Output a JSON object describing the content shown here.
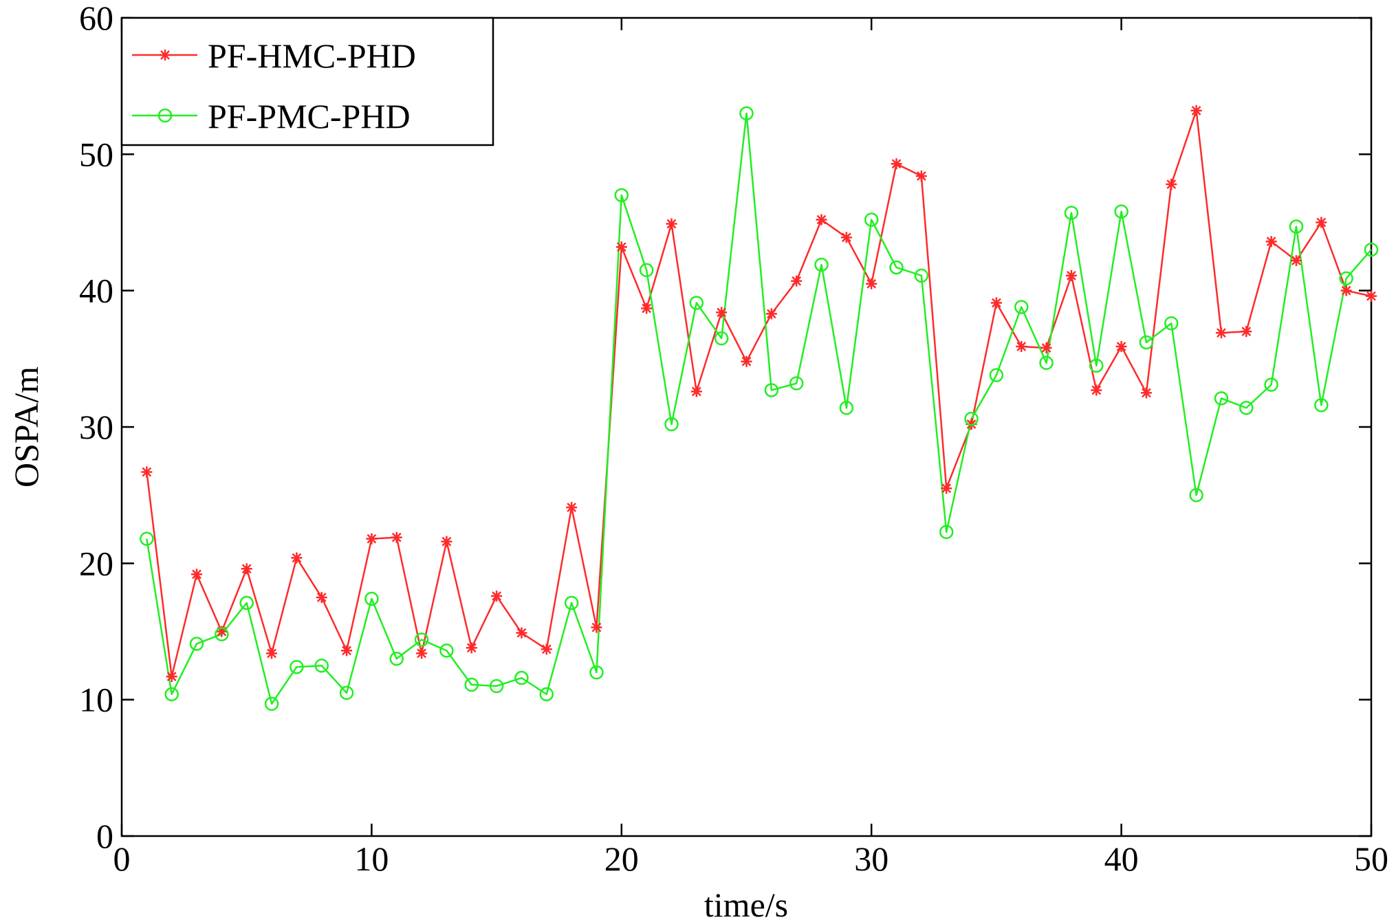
{
  "chart_data": {
    "type": "line",
    "title": "",
    "xlabel": "time/s",
    "ylabel": "OSPA/m",
    "xlim": [
      0,
      50
    ],
    "ylim": [
      0,
      60
    ],
    "xticks": [
      0,
      10,
      20,
      30,
      40,
      50
    ],
    "yticks": [
      0,
      10,
      20,
      30,
      40,
      50,
      60
    ],
    "grid": false,
    "legend_position": "top-left",
    "x": [
      1,
      2,
      3,
      4,
      5,
      6,
      7,
      8,
      9,
      10,
      11,
      12,
      13,
      14,
      15,
      16,
      17,
      18,
      19,
      20,
      21,
      22,
      23,
      24,
      25,
      26,
      27,
      28,
      29,
      30,
      31,
      32,
      33,
      34,
      35,
      36,
      37,
      38,
      39,
      40,
      41,
      42,
      43,
      44,
      45,
      46,
      47,
      48,
      49,
      50
    ],
    "series": [
      {
        "name": "PF-HMC-PHD",
        "color": "#ff2a2a",
        "marker": "star",
        "values": [
          26.7,
          11.7,
          19.2,
          15.0,
          19.6,
          13.4,
          20.4,
          17.5,
          13.6,
          21.8,
          21.9,
          13.4,
          21.6,
          13.8,
          17.6,
          14.9,
          13.7,
          24.1,
          15.3,
          43.2,
          38.7,
          44.9,
          32.6,
          38.4,
          34.8,
          38.3,
          40.7,
          45.2,
          43.9,
          40.5,
          49.3,
          48.4,
          25.5,
          30.2,
          39.1,
          35.9,
          35.8,
          41.1,
          32.7,
          35.9,
          32.5,
          47.8,
          53.2,
          36.9,
          37.0,
          43.6,
          42.2,
          45.0,
          40.0,
          39.6
        ]
      },
      {
        "name": "PF-PMC-PHD",
        "color": "#22ee22",
        "marker": "circle",
        "values": [
          21.8,
          10.4,
          14.1,
          14.8,
          17.1,
          9.7,
          12.4,
          12.5,
          10.5,
          17.4,
          13.0,
          14.4,
          13.6,
          11.1,
          11.0,
          11.6,
          10.4,
          17.1,
          12.0,
          47.0,
          41.5,
          30.2,
          39.1,
          36.5,
          53.0,
          32.7,
          33.2,
          41.9,
          31.4,
          45.2,
          41.7,
          41.1,
          22.3,
          30.6,
          33.8,
          38.8,
          34.7,
          45.7,
          34.5,
          45.8,
          36.2,
          37.6,
          25.0,
          32.1,
          31.4,
          33.1,
          44.7,
          31.6,
          40.9,
          43.0
        ]
      }
    ]
  }
}
